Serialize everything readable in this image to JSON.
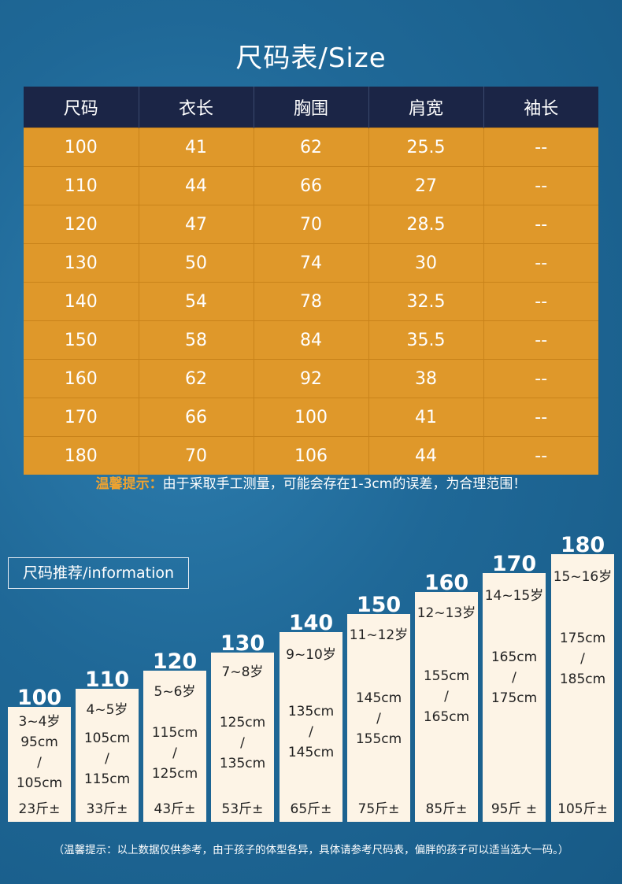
{
  "title": "尺码表/Size",
  "table": {
    "headers": [
      "尺码",
      "衣长",
      "胸围",
      "肩宽",
      "袖长"
    ],
    "rows": [
      [
        "100",
        "41",
        "62",
        "25.5",
        "--"
      ],
      [
        "110",
        "44",
        "66",
        "27",
        "--"
      ],
      [
        "120",
        "47",
        "70",
        "28.5",
        "--"
      ],
      [
        "130",
        "50",
        "74",
        "30",
        "--"
      ],
      [
        "140",
        "54",
        "78",
        "32.5",
        "--"
      ],
      [
        "150",
        "58",
        "84",
        "35.5",
        "--"
      ],
      [
        "160",
        "62",
        "92",
        "38",
        "--"
      ],
      [
        "170",
        "66",
        "100",
        "41",
        "--"
      ],
      [
        "180",
        "70",
        "106",
        "44",
        "--"
      ]
    ]
  },
  "tip": {
    "label": "温馨提示：",
    "text": "由于采取手工测量，可能会存在1-3cm的误差，为合理范围！"
  },
  "info_label": "尺码推荐/information",
  "recommendations": [
    {
      "size": "100",
      "age": "3~4岁",
      "height1": "95cm",
      "sep": "/",
      "height2": "105cm",
      "weight": "23斤±"
    },
    {
      "size": "110",
      "age": "4~5岁",
      "height1": "105cm",
      "sep": "/",
      "height2": "115cm",
      "weight": "33斤±"
    },
    {
      "size": "120",
      "age": "5~6岁",
      "height1": "115cm",
      "sep": "/",
      "height2": "125cm",
      "weight": "43斤±"
    },
    {
      "size": "130",
      "age": "7~8岁",
      "height1": "125cm",
      "sep": "/",
      "height2": "135cm",
      "weight": "53斤±"
    },
    {
      "size": "140",
      "age": "9~10岁",
      "height1": "135cm",
      "sep": "/",
      "height2": "145cm",
      "weight": "65斤±"
    },
    {
      "size": "150",
      "age": "11~12岁",
      "height1": "145cm",
      "sep": "/",
      "height2": "155cm",
      "weight": "75斤±"
    },
    {
      "size": "160",
      "age": "12~13岁",
      "height1": "155cm",
      "sep": "/",
      "height2": "165cm",
      "weight": "85斤±"
    },
    {
      "size": "170",
      "age": "14~15岁",
      "height1": "165cm",
      "sep": "/",
      "height2": "175cm",
      "weight": "95斤 ±"
    },
    {
      "size": "180",
      "age": "15~16岁",
      "height1": "175cm",
      "sep": "/",
      "height2": "185cm",
      "weight": "105斤±"
    }
  ],
  "footer": "（温馨提示：以上数据仅供参考，由于孩子的体型各异，具体请参考尺码表，偏胖的孩子可以适当选大一码。）"
}
